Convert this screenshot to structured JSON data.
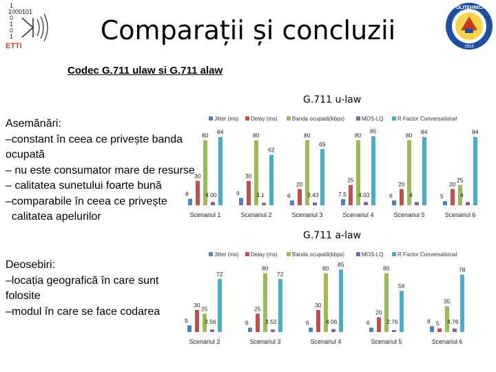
{
  "slide": {
    "title": "Comparații și concluzii",
    "subtitle": "Codec G.711 ulaw si G.711 alaw",
    "logo_left": {
      "text": "ETTI",
      "binary": [
        "1",
        "1000101",
        "0",
        "1",
        "0",
        "1"
      ]
    },
    "logo_right": {
      "text": "POLITEHNICA",
      "year": "1818"
    }
  },
  "similarities": {
    "heading": "Asemănări:",
    "lines": [
      "–constant în ceea ce privește banda",
      "ocupată",
      "– nu este consumator mare de resurse",
      "– calitatea sunetului foarte bună",
      "–comparabile în ceea ce privește",
      "  calitatea apelurilor"
    ]
  },
  "differences": {
    "heading": "Deosebiri:",
    "lines": [
      "–locația geografică în care sunt",
      "folosite",
      "–modul în care se face codarea"
    ]
  },
  "colors": {
    "jitter": "#4f81bd",
    "delay": "#c0504d",
    "banda": "#9bbb59",
    "mos": "#8064a2",
    "rfactor": "#4bacc6"
  },
  "chart_data": [
    {
      "type": "bar",
      "title": "G.711 u-law",
      "series_names": [
        "Jitter (ms)",
        "Delay (ms)",
        "Banda ocupată(kbps)",
        "MOS-LQ",
        "R Factor Conversational"
      ],
      "categories": [
        "Scenariul 1",
        "Scenariul 2",
        "Scenariul 3",
        "Scenariul 4",
        "Scenariul 5",
        "Scenariul 6"
      ],
      "series": [
        {
          "name": "Jitter (ms)",
          "values": [
            8,
            9,
            6,
            7.5,
            6,
            5
          ]
        },
        {
          "name": "Delay (ms)",
          "values": [
            30,
            30,
            20,
            25,
            20,
            20
          ]
        },
        {
          "name": "Banda ocupată(kbps)",
          "values": [
            80,
            80,
            80,
            80,
            80,
            25
          ]
        },
        {
          "name": "MOS-LQ",
          "values": [
            4.0,
            3.1,
            3.43,
            4.03,
            4,
            4
          ]
        },
        {
          "name": "R Factor Conversational",
          "values": [
            84,
            62,
            69,
            85,
            84,
            84
          ]
        }
      ],
      "labels": [
        [
          "8",
          "30",
          "80",
          "4.00",
          "84"
        ],
        [
          "9",
          "30",
          "80",
          "3.1",
          "62"
        ],
        [
          "6",
          "20",
          "80",
          "3.43",
          "69"
        ],
        [
          "7.5",
          "25",
          "80",
          "4.03",
          "85"
        ],
        [
          "6",
          "20",
          "80",
          "4",
          "84"
        ],
        [
          "5",
          "20",
          "25",
          "4",
          "84"
        ]
      ],
      "ylim": [
        0,
        88
      ],
      "legend": "top",
      "grid": false
    },
    {
      "type": "bar",
      "title": "G.711 a-law",
      "series_names": [
        "Jitter (ms)",
        "Delay (ms)",
        "Banda ocupată(kbps)",
        "MOS-LQ",
        "R Factor Conversational"
      ],
      "categories": [
        "Scenariul 2",
        "Scenariul 3",
        "Scenariul 4",
        "Scenariul 5",
        "Scenariul 6"
      ],
      "series": [
        {
          "name": "Jitter (ms)",
          "values": [
            9,
            6,
            6,
            6,
            8
          ]
        },
        {
          "name": "Delay (ms)",
          "values": [
            30,
            25,
            30,
            20,
            5
          ]
        },
        {
          "name": "Banda ocupată(kbps)",
          "values": [
            25,
            80,
            80,
            80,
            35
          ]
        },
        {
          "name": "MOS-LQ",
          "values": [
            3.56,
            3.52,
            4.06,
            2.76,
            4.76
          ]
        },
        {
          "name": "R Factor Conversational",
          "values": [
            72,
            72,
            85,
            56,
            78
          ]
        }
      ],
      "labels": [
        [
          "9",
          "30",
          "25",
          "3.56",
          "72"
        ],
        [
          "6",
          "25",
          "80",
          "3.52",
          "72"
        ],
        [
          "6",
          "30",
          "80",
          "4.06",
          "85"
        ],
        [
          "6",
          "20",
          "80",
          "2.76",
          "56"
        ],
        [
          "8",
          "5",
          "35",
          "4.76",
          "78"
        ]
      ],
      "ylim": [
        0,
        88
      ],
      "legend": "top",
      "grid": false
    }
  ]
}
